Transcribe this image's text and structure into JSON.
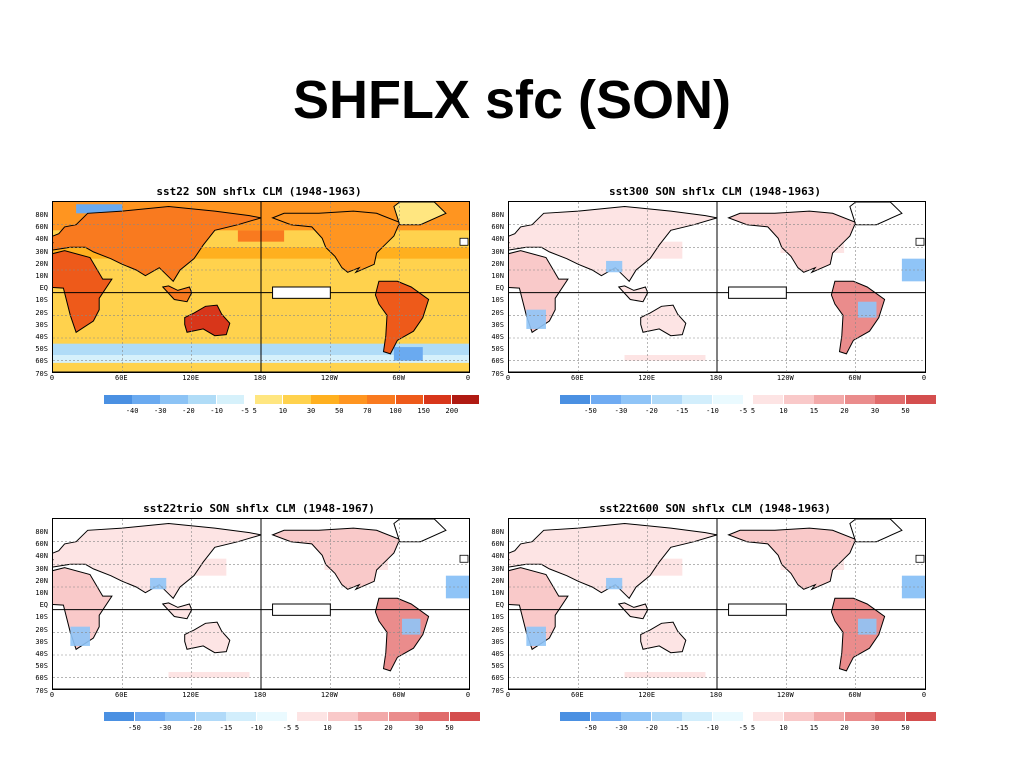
{
  "slide": {
    "title": "SHFLX sfc (SON)"
  },
  "axes": {
    "lat_labels": [
      "80N",
      "60N",
      "40N",
      "30N",
      "20N",
      "10N",
      "EQ",
      "10S",
      "20S",
      "30S",
      "40S",
      "50S",
      "60S",
      "70S"
    ],
    "lon_labels": [
      "0",
      "60E",
      "120E",
      "180",
      "120W",
      "60W",
      "0"
    ]
  },
  "panels": [
    {
      "title": "sst22 SON shflx CLM (1948-1963)",
      "kind": "absolute",
      "colorbar_labels": [
        "-40",
        "-30",
        "-20",
        "-10",
        "-5",
        "5",
        "10",
        "30",
        "50",
        "70",
        "100",
        "150",
        "200"
      ],
      "colors": [
        "#4a90e2",
        "#6aaaf0",
        "#8cc3f5",
        "#b0dcf7",
        "#d6f1fb",
        "#ffe680",
        "#ffd24d",
        "#ffb01f",
        "#ff9520",
        "#f97a1f",
        "#ee5a1a",
        "#d8361a",
        "#b01a12"
      ]
    },
    {
      "title": "sst300 SON shflx CLM (1948-1963)",
      "kind": "difference",
      "colorbar_labels": [
        "-50",
        "-30",
        "-20",
        "-15",
        "-10",
        "-5",
        "5",
        "10",
        "15",
        "20",
        "30",
        "50"
      ],
      "colors": [
        "#4a90e2",
        "#6fabf2",
        "#8fc4f7",
        "#b1daf9",
        "#d2eefc",
        "#eafaff",
        "#fde4e4",
        "#f9c9c9",
        "#f2a9a9",
        "#ea8c8c",
        "#e06b6b",
        "#d44e4e"
      ]
    },
    {
      "title": "sst22trio SON shflx CLM (1948-1967)",
      "kind": "difference",
      "colorbar_labels": [
        "-50",
        "-30",
        "-20",
        "-15",
        "-10",
        "-5",
        "5",
        "10",
        "15",
        "20",
        "30",
        "50"
      ],
      "colors": [
        "#4a90e2",
        "#6fabf2",
        "#8fc4f7",
        "#b1daf9",
        "#d2eefc",
        "#eafaff",
        "#fde4e4",
        "#f9c9c9",
        "#f2a9a9",
        "#ea8c8c",
        "#e06b6b",
        "#d44e4e"
      ]
    },
    {
      "title": "sst22t600 SON shflx CLM (1948-1963)",
      "kind": "difference",
      "colorbar_labels": [
        "-50",
        "-30",
        "-20",
        "-15",
        "-10",
        "-5",
        "5",
        "10",
        "15",
        "20",
        "30",
        "50"
      ],
      "colors": [
        "#4a90e2",
        "#6fabf2",
        "#8fc4f7",
        "#b1daf9",
        "#d2eefc",
        "#eafaff",
        "#fde4e4",
        "#f9c9c9",
        "#f2a9a9",
        "#ea8c8c",
        "#e06b6b",
        "#d44e4e"
      ]
    }
  ]
}
